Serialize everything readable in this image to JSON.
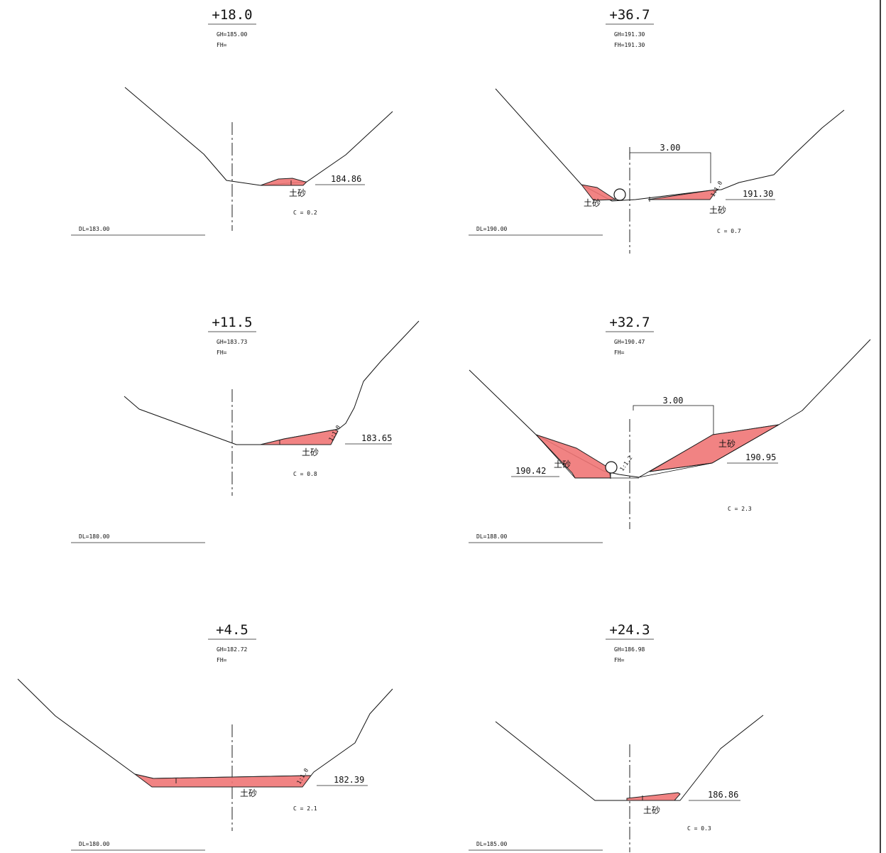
{
  "sections": [
    {
      "id": "s1",
      "station": "+18.0",
      "gh": "GH=185.00",
      "fh": "FH=",
      "elevation": "184.86",
      "material": "土砂",
      "coefficient": "C = 0.2",
      "datum": "DL=183.00"
    },
    {
      "id": "s2",
      "station": "+36.7",
      "gh": "GH=191.30",
      "fh": "FH=191.30",
      "elevation": "191.30",
      "material": "土砂",
      "material_left": "土砂",
      "coefficient": "C = 0.7",
      "datum": "DL=190.00",
      "width": "3.00",
      "slope": "1:1.0"
    },
    {
      "id": "s3",
      "station": "+11.5",
      "gh": "GH=183.73",
      "fh": "FH=",
      "elevation": "183.65",
      "material": "土砂",
      "coefficient": "C = 0.8",
      "datum": "DL=180.00",
      "slope": "1:1.0"
    },
    {
      "id": "s4",
      "station": "+32.7",
      "gh": "GH=190.47",
      "fh": "FH=",
      "elevation": "190.95",
      "elevation_left": "190.42",
      "material": "土砂",
      "material_left": "土砂",
      "coefficient": "C = 2.3",
      "datum": "DL=188.00",
      "width": "3.00",
      "slope": "1:1.2"
    },
    {
      "id": "s5",
      "station": "+4.5",
      "gh": "GH=182.72",
      "fh": "FH=",
      "elevation": "182.39",
      "material": "土砂",
      "coefficient": "C = 2.1",
      "datum": "DL=180.00",
      "slope": "1:1.0"
    },
    {
      "id": "s6",
      "station": "+24.3",
      "gh": "GH=186.98",
      "fh": "FH=",
      "elevation": "186.86",
      "material": "土砂",
      "coefficient": "C = 0.3",
      "datum": "DL=185.00"
    }
  ]
}
